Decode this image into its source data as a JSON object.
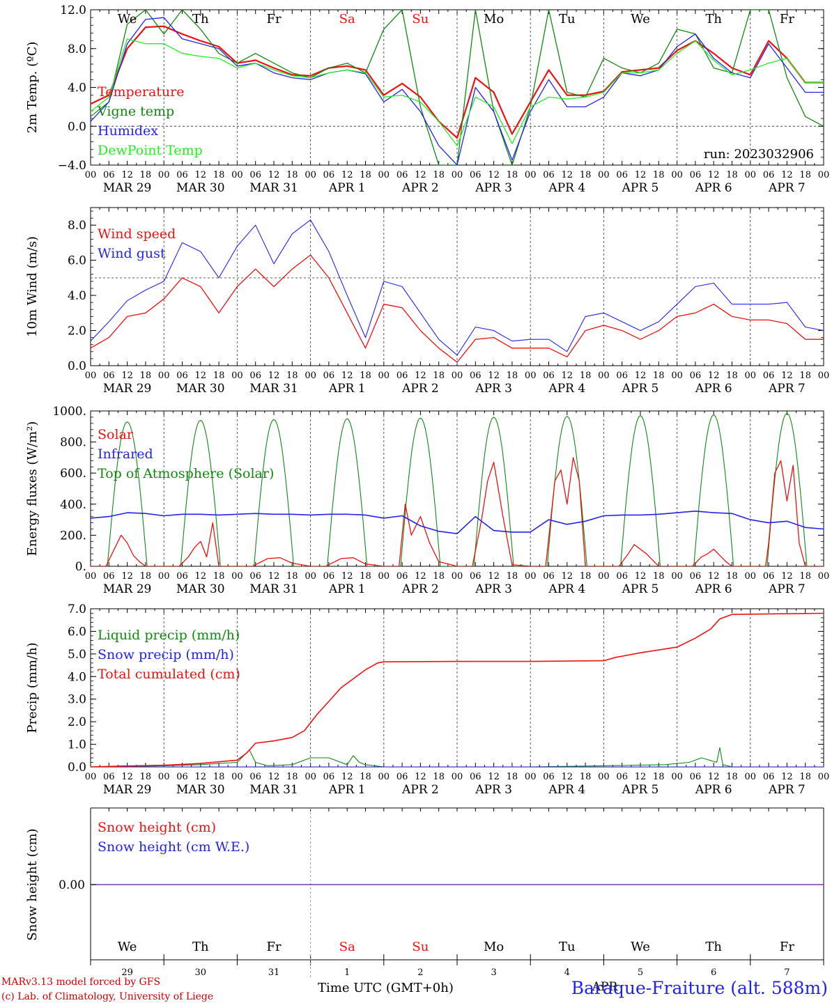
{
  "colors": {
    "red": "#ee1111",
    "darkgreen": "#118811",
    "blue": "#2222ee",
    "lightgreen": "#22ee22",
    "grid": "#444444",
    "purple": "#7a3aa0",
    "weekend": "#ee1111",
    "weekday": "#000000"
  },
  "days": [
    "We",
    "Th",
    "Fr",
    "Sa",
    "Su",
    "Mo",
    "Tu",
    "We",
    "Th",
    "Fr"
  ],
  "weekend_days": [
    "Sa",
    "Su"
  ],
  "date_labels": [
    "MAR 29",
    "MAR 30",
    "MAR 31",
    "APR  1",
    "APR  2",
    "APR  3",
    "APR  4",
    "APR  5",
    "APR  6",
    "APR  7"
  ],
  "hour_labels": [
    "00",
    "06",
    "12",
    "18"
  ],
  "final_hour_label": "00",
  "bottom_day_numbers": [
    "29",
    "30",
    "31",
    "1",
    "2",
    "3",
    "4",
    "5",
    "6",
    "7"
  ],
  "footer": {
    "credit_line1": "MARv3.13 model forced by GFS",
    "credit_line2": "(c) Lab. of Climatology, University of Liege",
    "time_axis": "Time UTC (GMT+0h)",
    "month_label": "APR",
    "station": "Baraque-Fraiture (alt. 588m)"
  },
  "chart_data": [
    {
      "type": "line",
      "ylabel": "2m Temp. (ºC)",
      "ylim": [
        -4.0,
        12.0
      ],
      "yticks": [
        -4.0,
        0.0,
        4.0,
        8.0,
        12.0
      ],
      "ytick_labels": [
        "−4.0",
        "0.0",
        "4.0",
        "8.0",
        "12.0"
      ],
      "annotation": "run: 2023032906",
      "dashed_y": 0.0,
      "x_unit": "hours since MAR 29 00 UTC",
      "series": [
        {
          "name": "Temperature",
          "color": "red",
          "width": 2.2,
          "x": [
            0,
            6,
            12,
            18,
            24,
            30,
            36,
            42,
            48,
            54,
            60,
            66,
            72,
            78,
            84,
            90,
            96,
            102,
            108,
            114,
            120,
            126,
            132,
            138,
            144,
            150,
            156,
            162,
            168,
            174,
            180,
            186,
            192,
            198,
            204,
            210,
            216,
            222,
            228,
            234,
            240
          ],
          "y": [
            2.3,
            3.2,
            8.0,
            10.2,
            10.3,
            9.5,
            8.8,
            8.2,
            6.5,
            6.8,
            6.0,
            5.3,
            5.2,
            6.0,
            6.2,
            5.8,
            3.2,
            4.4,
            3.0,
            0.5,
            -1.2,
            5.0,
            3.5,
            -0.8,
            2.5,
            5.8,
            3.2,
            3.2,
            3.6,
            5.6,
            5.8,
            6.0,
            7.8,
            8.8,
            7.5,
            6.0,
            5.3,
            8.8,
            7.0,
            4.5,
            4.5
          ]
        },
        {
          "name": "Vigne temp",
          "color": "darkgreen",
          "width": 1.3,
          "x": [
            0,
            6,
            12,
            18,
            24,
            30,
            36,
            42,
            48,
            54,
            60,
            66,
            72,
            78,
            84,
            90,
            96,
            102,
            108,
            114,
            120,
            126,
            132,
            138,
            144,
            150,
            156,
            162,
            168,
            174,
            180,
            186,
            192,
            198,
            204,
            210,
            216,
            222,
            228,
            234,
            240
          ],
          "y": [
            1.0,
            2.5,
            10.5,
            12.0,
            9.5,
            12.0,
            10.0,
            7.5,
            6.5,
            7.5,
            6.5,
            5.5,
            5.0,
            6.0,
            6.5,
            5.5,
            10.0,
            12.0,
            2.0,
            -4.0,
            -4.0,
            12.0,
            1.5,
            -4.0,
            2.0,
            12.0,
            3.5,
            3.0,
            7.0,
            6.0,
            5.5,
            6.5,
            10.0,
            9.5,
            6.0,
            5.5,
            12.0,
            12.0,
            5.0,
            1.0,
            0.0
          ]
        },
        {
          "name": "Humidex",
          "color": "blue",
          "width": 1.3,
          "x": [
            0,
            6,
            12,
            18,
            24,
            30,
            36,
            42,
            48,
            54,
            60,
            66,
            72,
            78,
            84,
            90,
            96,
            102,
            108,
            114,
            120,
            126,
            132,
            138,
            144,
            150,
            156,
            162,
            168,
            174,
            180,
            186,
            192,
            198,
            204,
            210,
            216,
            222,
            228,
            234,
            240
          ],
          "y": [
            0.5,
            2.5,
            8.5,
            11.0,
            11.2,
            9.0,
            8.5,
            8.0,
            6.2,
            6.5,
            5.5,
            5.0,
            4.8,
            5.5,
            5.8,
            5.4,
            2.5,
            3.8,
            1.5,
            -2.0,
            -4.0,
            4.0,
            1.5,
            -3.5,
            1.5,
            4.8,
            2.0,
            2.0,
            3.0,
            5.5,
            5.2,
            5.8,
            8.2,
            9.5,
            7.0,
            5.5,
            5.0,
            8.5,
            6.0,
            3.5,
            3.5
          ]
        },
        {
          "name": "DewPoint Temp",
          "color": "lightgreen",
          "width": 1.3,
          "x": [
            0,
            6,
            12,
            18,
            24,
            30,
            36,
            42,
            48,
            54,
            60,
            66,
            72,
            78,
            84,
            90,
            96,
            102,
            108,
            114,
            120,
            126,
            132,
            138,
            144,
            150,
            156,
            162,
            168,
            174,
            180,
            186,
            192,
            198,
            204,
            210,
            216,
            222,
            228,
            234,
            240
          ],
          "y": [
            1.5,
            3.0,
            9.0,
            8.5,
            8.5,
            7.5,
            7.2,
            7.0,
            6.0,
            6.5,
            5.8,
            5.2,
            5.0,
            5.5,
            5.8,
            5.5,
            3.0,
            3.2,
            2.5,
            0.5,
            -2.0,
            3.0,
            2.0,
            -1.8,
            2.0,
            3.0,
            2.8,
            3.0,
            3.5,
            5.5,
            5.5,
            5.8,
            7.5,
            8.8,
            6.8,
            5.3,
            5.8,
            6.5,
            7.0,
            4.5,
            4.5
          ]
        }
      ]
    },
    {
      "type": "line",
      "ylabel": "10m Wind (m/s)",
      "ylim": [
        0.0,
        9.0
      ],
      "yticks": [
        0.0,
        2.0,
        4.0,
        6.0,
        8.0
      ],
      "ytick_labels": [
        "0.0",
        "2.0",
        "4.0",
        "6.0",
        "8.0"
      ],
      "dashed_y": 5.0,
      "series": [
        {
          "name": "Wind speed",
          "color": "red",
          "width": 1.3,
          "x": [
            0,
            6,
            12,
            18,
            24,
            30,
            36,
            42,
            48,
            54,
            60,
            66,
            72,
            78,
            84,
            90,
            96,
            102,
            108,
            114,
            120,
            126,
            132,
            138,
            144,
            150,
            156,
            162,
            168,
            174,
            180,
            186,
            192,
            198,
            204,
            210,
            216,
            222,
            228,
            234,
            240
          ],
          "y": [
            1.0,
            1.6,
            2.8,
            3.0,
            3.8,
            5.0,
            4.5,
            3.0,
            4.5,
            5.5,
            4.5,
            5.5,
            6.3,
            5.0,
            3.0,
            1.0,
            3.5,
            3.3,
            2.0,
            1.0,
            0.2,
            1.5,
            1.6,
            1.0,
            1.0,
            1.0,
            0.5,
            2.0,
            2.3,
            2.0,
            1.5,
            2.0,
            2.8,
            3.0,
            3.5,
            2.8,
            2.6,
            2.6,
            2.4,
            1.5,
            1.5
          ]
        },
        {
          "name": "Wind gust",
          "color": "blue",
          "width": 1.1,
          "x": [
            0,
            6,
            12,
            18,
            24,
            30,
            36,
            42,
            48,
            54,
            60,
            66,
            72,
            78,
            84,
            90,
            96,
            102,
            108,
            114,
            120,
            126,
            132,
            138,
            144,
            150,
            156,
            162,
            168,
            174,
            180,
            186,
            192,
            198,
            204,
            210,
            216,
            222,
            228,
            234,
            240
          ],
          "y": [
            1.4,
            2.5,
            3.7,
            4.3,
            4.8,
            7.0,
            6.5,
            5.0,
            6.8,
            8.0,
            5.8,
            7.5,
            8.3,
            6.5,
            4.0,
            1.6,
            4.8,
            4.5,
            3.0,
            1.5,
            0.6,
            2.2,
            2.0,
            1.4,
            1.5,
            1.5,
            0.8,
            2.8,
            3.0,
            2.5,
            2.0,
            2.5,
            3.5,
            4.5,
            4.7,
            3.5,
            3.5,
            3.5,
            3.6,
            2.2,
            2.0
          ]
        }
      ]
    },
    {
      "type": "line",
      "ylabel": "Energy fluxes (W/m²)",
      "ylim": [
        0,
        1000
      ],
      "yticks": [
        0,
        200,
        400,
        600,
        800,
        1000
      ],
      "ytick_labels": [
        "0.",
        "200.",
        "400.",
        "600.",
        "800.",
        "1000."
      ],
      "series": [
        {
          "name": "Solar",
          "color": "red",
          "width": 1.3,
          "x": [
            0,
            5,
            8,
            10,
            12,
            14,
            16,
            18,
            24,
            29,
            32,
            34,
            36,
            38,
            40,
            42,
            48,
            53,
            58,
            62,
            66,
            72,
            77,
            82,
            86,
            90,
            96,
            101,
            103,
            105,
            108,
            111,
            114,
            120,
            125,
            128,
            130,
            132,
            135,
            138,
            144,
            149,
            152,
            154,
            156,
            158,
            160,
            162,
            168,
            173,
            176,
            178,
            180,
            182,
            184,
            186,
            192,
            197,
            200,
            202,
            204,
            206,
            208,
            210,
            216,
            221,
            222,
            224,
            226,
            228,
            230,
            232,
            234,
            240
          ],
          "y": [
            0,
            0,
            120,
            200,
            150,
            70,
            30,
            0,
            0,
            0,
            60,
            120,
            160,
            60,
            280,
            0,
            0,
            0,
            50,
            55,
            20,
            0,
            0,
            50,
            55,
            15,
            0,
            0,
            400,
            200,
            320,
            150,
            30,
            0,
            0,
            300,
            550,
            670,
            320,
            10,
            0,
            0,
            550,
            620,
            400,
            700,
            550,
            0,
            0,
            0,
            80,
            140,
            110,
            80,
            40,
            0,
            0,
            0,
            60,
            80,
            110,
            70,
            30,
            0,
            0,
            0,
            150,
            600,
            680,
            420,
            650,
            150,
            0,
            0
          ]
        },
        {
          "name": "Infrared",
          "color": "blue",
          "width": 1.6,
          "x": [
            0,
            6,
            12,
            18,
            24,
            30,
            36,
            42,
            48,
            54,
            60,
            66,
            72,
            78,
            84,
            90,
            96,
            102,
            108,
            114,
            120,
            126,
            132,
            138,
            144,
            150,
            156,
            162,
            168,
            174,
            180,
            186,
            192,
            198,
            204,
            210,
            216,
            222,
            228,
            234,
            240
          ],
          "y": [
            310,
            320,
            345,
            340,
            325,
            335,
            335,
            330,
            335,
            340,
            335,
            335,
            330,
            335,
            335,
            330,
            310,
            325,
            260,
            225,
            210,
            320,
            230,
            220,
            220,
            300,
            270,
            290,
            325,
            330,
            330,
            335,
            345,
            355,
            345,
            340,
            300,
            280,
            290,
            250,
            240
          ]
        },
        {
          "name": "Top of Atmosphere (Solar)",
          "color": "darkgreen",
          "width": 1.1,
          "daily_peak": [
            930,
            940,
            945,
            950,
            955,
            960,
            965,
            970,
            975,
            985
          ],
          "daylight_hours": [
            5.5,
            18.5
          ]
        }
      ]
    },
    {
      "type": "line",
      "ylabel": "Precip (mm/h)",
      "ylim": [
        0.0,
        7.0
      ],
      "yticks": [
        0.0,
        1.0,
        2.0,
        3.0,
        4.0,
        5.0,
        6.0,
        7.0
      ],
      "ytick_labels": [
        "0.0",
        "1.0",
        "2.0",
        "3.0",
        "4.0",
        "5.0",
        "6.0",
        "7.0"
      ],
      "series": [
        {
          "name": "Liquid precip (mm/h)",
          "color": "darkgreen",
          "width": 1.1,
          "x": [
            0,
            12,
            24,
            36,
            48,
            52,
            54,
            58,
            66,
            72,
            78,
            84,
            86,
            88,
            90,
            96,
            144,
            168,
            188,
            196,
            200,
            205,
            206,
            207,
            210,
            240
          ],
          "y": [
            0,
            0.02,
            0.05,
            0.1,
            0.2,
            0.75,
            0.2,
            0.05,
            0.1,
            0.4,
            0.4,
            0.1,
            0.5,
            0.2,
            0.1,
            0,
            0,
            0.05,
            0.1,
            0.2,
            0.4,
            0.2,
            0.85,
            0.1,
            0,
            0
          ]
        },
        {
          "name": "Snow precip (mm/h)",
          "color": "blue",
          "width": 1.1,
          "x": [
            0,
            240
          ],
          "y": [
            0,
            0
          ]
        },
        {
          "name": "Total cumulated (cm)",
          "color": "red",
          "width": 1.6,
          "x": [
            0,
            12,
            24,
            36,
            48,
            51,
            54,
            60,
            66,
            70,
            74,
            78,
            82,
            86,
            90,
            94,
            96,
            120,
            144,
            168,
            172,
            180,
            192,
            198,
            203,
            206,
            210,
            240
          ],
          "y": [
            0,
            0.04,
            0.07,
            0.15,
            0.3,
            0.6,
            1.05,
            1.15,
            1.3,
            1.6,
            2.3,
            2.9,
            3.5,
            3.9,
            4.3,
            4.6,
            4.65,
            4.67,
            4.67,
            4.7,
            4.85,
            5.05,
            5.3,
            5.7,
            6.1,
            6.55,
            6.75,
            6.8
          ]
        }
      ]
    },
    {
      "type": "line",
      "ylabel": "Snow height (cm)",
      "ytick_labels": [
        "0.00"
      ],
      "series": [
        {
          "name": "Snow height (cm)",
          "color": "red"
        },
        {
          "name": "Snow height (cm W.E.)",
          "color": "blue"
        }
      ]
    }
  ]
}
